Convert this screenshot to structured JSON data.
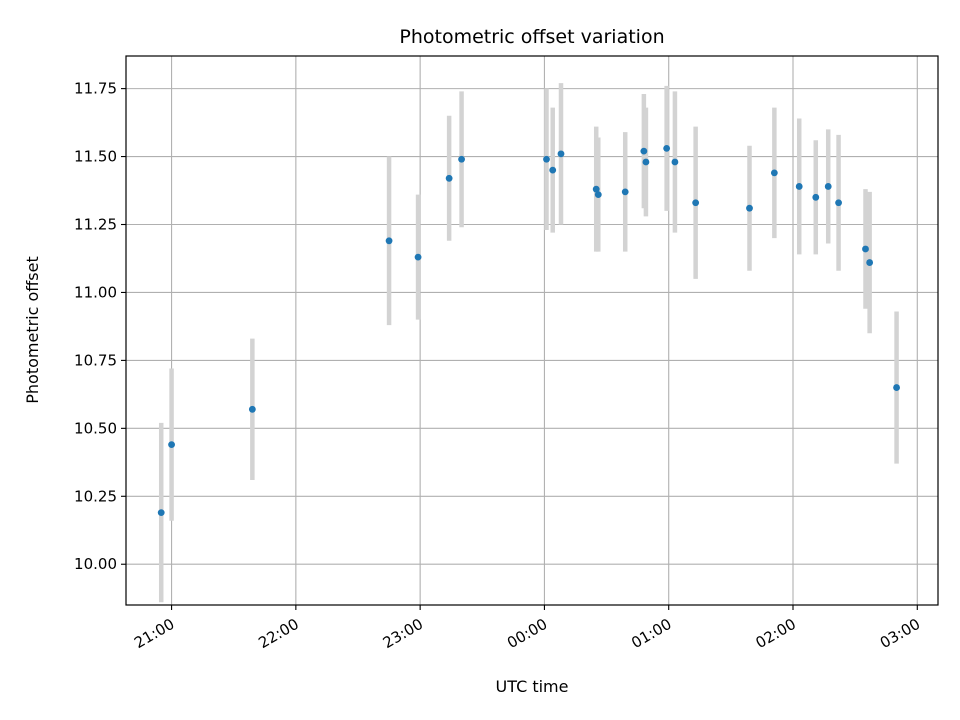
{
  "chart_data": {
    "type": "scatter",
    "title": "Photometric offset variation",
    "xlabel": "UTC time",
    "ylabel": "Photometric offset",
    "xlim": [
      "20:38",
      "03:10"
    ],
    "ylim": [
      9.85,
      11.87
    ],
    "grid": true,
    "x_ticks": [
      "21:00",
      "22:00",
      "23:00",
      "00:00",
      "01:00",
      "02:00",
      "03:00"
    ],
    "y_ticks": [
      10.0,
      10.25,
      10.5,
      10.75,
      11.0,
      11.25,
      11.5,
      11.75
    ],
    "y_tick_labels": [
      "10.00",
      "10.25",
      "10.50",
      "10.75",
      "11.00",
      "11.25",
      "11.50",
      "11.75"
    ],
    "colors": {
      "point": "#1f77b4",
      "errorbar": "#d3d3d3",
      "grid": "#b0b0b0"
    },
    "points": [
      {
        "x": "20:55",
        "y": 10.19,
        "err": 0.33
      },
      {
        "x": "21:00",
        "y": 10.44,
        "err": 0.28
      },
      {
        "x": "21:39",
        "y": 10.57,
        "err": 0.26
      },
      {
        "x": "22:45",
        "y": 11.19,
        "err": 0.31
      },
      {
        "x": "22:59",
        "y": 11.13,
        "err": 0.23
      },
      {
        "x": "23:14",
        "y": 11.42,
        "err": 0.23
      },
      {
        "x": "23:20",
        "y": 11.49,
        "err": 0.25
      },
      {
        "x": "00:01",
        "y": 11.49,
        "err": 0.26
      },
      {
        "x": "00:04",
        "y": 11.45,
        "err": 0.23
      },
      {
        "x": "00:08",
        "y": 11.51,
        "err": 0.26
      },
      {
        "x": "00:25",
        "y": 11.38,
        "err": 0.23
      },
      {
        "x": "00:26",
        "y": 11.36,
        "err": 0.21
      },
      {
        "x": "00:39",
        "y": 11.37,
        "err": 0.22
      },
      {
        "x": "00:48",
        "y": 11.52,
        "err": 0.21
      },
      {
        "x": "00:49",
        "y": 11.48,
        "err": 0.2
      },
      {
        "x": "00:59",
        "y": 11.53,
        "err": 0.23
      },
      {
        "x": "01:03",
        "y": 11.48,
        "err": 0.26
      },
      {
        "x": "01:13",
        "y": 11.33,
        "err": 0.28
      },
      {
        "x": "01:39",
        "y": 11.31,
        "err": 0.23
      },
      {
        "x": "01:51",
        "y": 11.44,
        "err": 0.24
      },
      {
        "x": "02:03",
        "y": 11.39,
        "err": 0.25
      },
      {
        "x": "02:11",
        "y": 11.35,
        "err": 0.21
      },
      {
        "x": "02:17",
        "y": 11.39,
        "err": 0.21
      },
      {
        "x": "02:22",
        "y": 11.33,
        "err": 0.25
      },
      {
        "x": "02:35",
        "y": 11.16,
        "err": 0.22
      },
      {
        "x": "02:37",
        "y": 11.11,
        "err": 0.26
      },
      {
        "x": "02:50",
        "y": 10.65,
        "err": 0.28
      }
    ]
  }
}
